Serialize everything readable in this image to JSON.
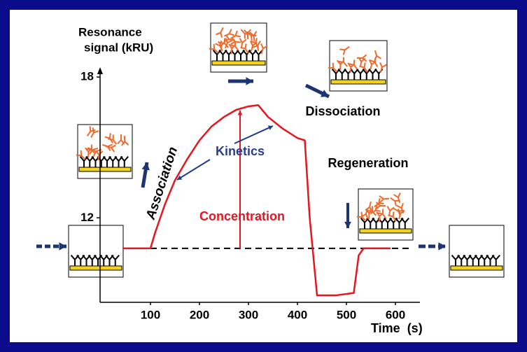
{
  "chart_data": {
    "type": "line",
    "y_label": [
      "Resonance",
      "signal (kRU)"
    ],
    "x_label": "Time  (s)",
    "x": [
      43,
      100,
      110,
      130,
      150,
      175,
      200,
      225,
      250,
      275,
      300,
      320,
      340,
      370,
      400,
      415,
      425,
      440,
      480,
      515,
      525,
      535,
      590
    ],
    "series": [
      {
        "color": "#e8141e",
        "values": [
          10.7,
          10.7,
          11.4,
          12.6,
          13.6,
          14.5,
          15.3,
          15.9,
          16.3,
          16.6,
          16.75,
          16.8,
          16.3,
          15.8,
          15.4,
          15.3,
          12,
          8.7,
          8.7,
          8.8,
          10.4,
          10.7,
          10.7
        ]
      }
    ],
    "baseline": 10.7,
    "xlim": [
      0,
      650
    ],
    "ylim": [
      8.4,
      18.3
    ],
    "xticks": [
      100,
      200,
      300,
      400,
      500,
      600
    ],
    "yticks": [
      12,
      18
    ],
    "association": "Association",
    "kinetics": "Kinetics",
    "concentration": "Concentration",
    "dissociation": "Dissociation",
    "regeneration": "Regeneration"
  }
}
